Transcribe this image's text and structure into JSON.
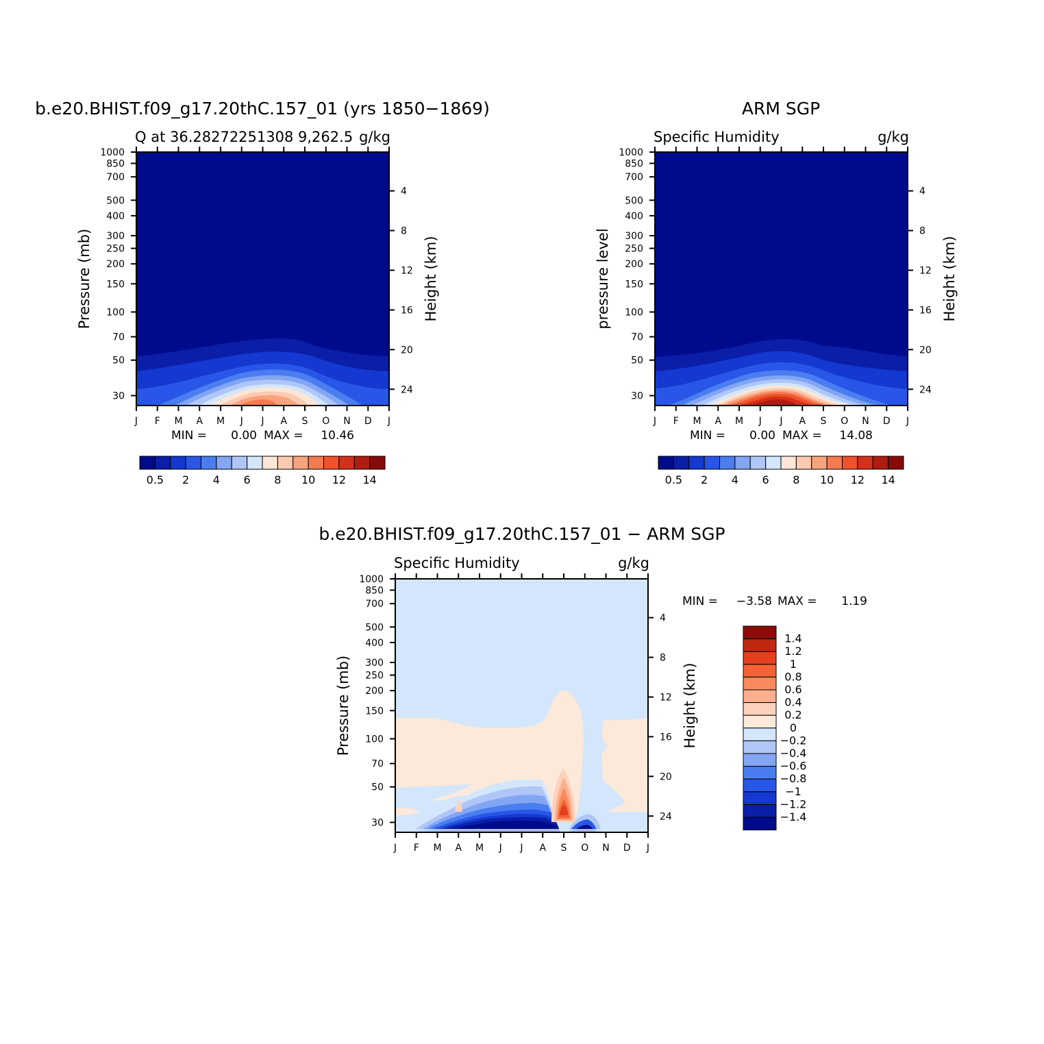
{
  "chart_data": [
    {
      "type": "heatmap",
      "title": "b.e20.BHIST.f09_g17.20thC.157_01 (yrs 1850−1869)",
      "left_subtitle": "Q at 36.28272251308 9,262.5",
      "right_subtitle": "g/kg",
      "ylabel": "Pressure (mb)",
      "ylabel_right": "Height (km)",
      "x": [
        "J",
        "F",
        "M",
        "A",
        "M",
        "J",
        "J",
        "A",
        "S",
        "O",
        "N",
        "D",
        "J"
      ],
      "pressure_ticks": [
        "30",
        "50",
        "70",
        "100",
        "150",
        "200",
        "250",
        "300",
        "400",
        "500",
        "700",
        "850",
        "1000"
      ],
      "height_ticks": [
        "24",
        "20",
        "16",
        "12",
        "8",
        "4"
      ],
      "min_label": "MIN =",
      "min_value": "0.00",
      "max_label": "MAX =",
      "max_value": "10.46",
      "colorbar_labels": [
        "0.5",
        "2",
        "4",
        "6",
        "8",
        "10",
        "12",
        "14"
      ]
    },
    {
      "type": "heatmap",
      "title": "ARM SGP",
      "left_subtitle": "Specific Humidity",
      "right_subtitle": "g/kg",
      "ylabel": "pressure level",
      "ylabel_right": "Height (km)",
      "x": [
        "J",
        "F",
        "M",
        "A",
        "M",
        "J",
        "J",
        "A",
        "S",
        "O",
        "N",
        "D",
        "J"
      ],
      "pressure_ticks": [
        "30",
        "50",
        "70",
        "100",
        "150",
        "200",
        "250",
        "300",
        "400",
        "500",
        "700",
        "850",
        "1000"
      ],
      "height_ticks": [
        "24",
        "20",
        "16",
        "12",
        "8",
        "4"
      ],
      "min_label": "MIN =",
      "min_value": "0.00",
      "max_label": "MAX =",
      "max_value": "14.08",
      "colorbar_labels": [
        "0.5",
        "2",
        "4",
        "6",
        "8",
        "10",
        "12",
        "14"
      ]
    },
    {
      "type": "heatmap",
      "title": "b.e20.BHIST.f09_g17.20thC.157_01 − ARM SGP",
      "left_subtitle": "Specific Humidity",
      "right_subtitle": "g/kg",
      "ylabel": "Pressure (mb)",
      "ylabel_right": "Height (km)",
      "x": [
        "J",
        "F",
        "M",
        "A",
        "M",
        "J",
        "J",
        "A",
        "S",
        "O",
        "N",
        "D",
        "J"
      ],
      "pressure_ticks": [
        "30",
        "50",
        "70",
        "100",
        "150",
        "200",
        "250",
        "300",
        "400",
        "500",
        "700",
        "850",
        "1000"
      ],
      "height_ticks": [
        "24",
        "20",
        "16",
        "12",
        "8",
        "4"
      ],
      "min_label": "MIN =",
      "min_value": "−3.58",
      "max_label": "MAX =",
      "max_value": "1.19",
      "colorbar_labels": [
        "1.4",
        "1.2",
        "1",
        "0.8",
        "0.6",
        "0.4",
        "0.2",
        "0",
        "−0.2",
        "−0.4",
        "−0.6",
        "−0.8",
        "−1",
        "−1.2",
        "−1.4"
      ]
    }
  ],
  "colors": {
    "humidity_scale": [
      "#000b8c",
      "#0a1ea8",
      "#1438d0",
      "#2856e6",
      "#4a7ef0",
      "#82a6f4",
      "#afc6f7",
      "#d3e6fb",
      "#fde6d6",
      "#fccab0",
      "#f9a37c",
      "#f57a4e",
      "#f0522a",
      "#d4311a",
      "#b11c10",
      "#870a08"
    ],
    "diff_scale": [
      "#000b8c",
      "#0a1ea8",
      "#1438d0",
      "#2856e6",
      "#4a7ef0",
      "#82a6f4",
      "#afc6f7",
      "#d3e6fb",
      "#fde9d9",
      "#fdd2bd",
      "#fcb090",
      "#f98a5e",
      "#f56236",
      "#e4401f",
      "#bf2811",
      "#8c0b08"
    ]
  }
}
